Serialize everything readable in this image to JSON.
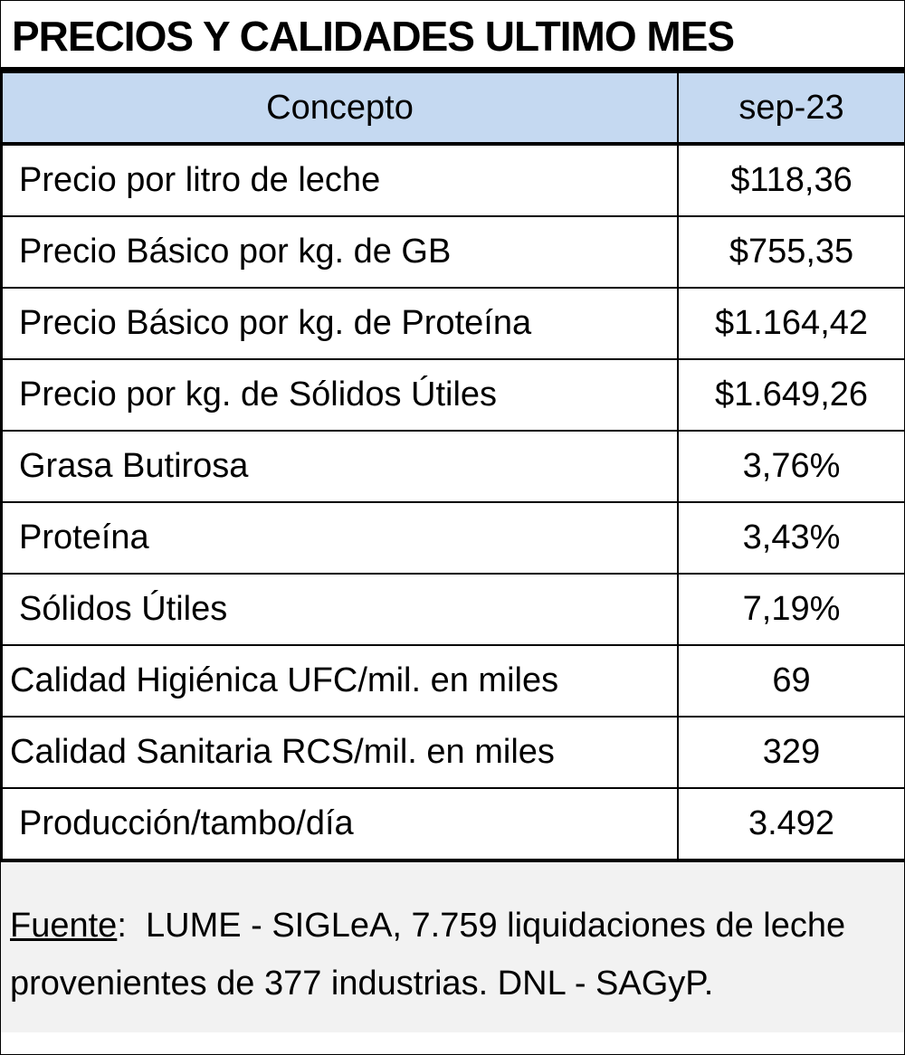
{
  "title": "PRECIOS Y CALIDADES ULTIMO MES",
  "table": {
    "headers": {
      "concepto": "Concepto",
      "period": "sep-23"
    },
    "rows": [
      {
        "label": "Precio por litro de leche",
        "value": "$118,36"
      },
      {
        "label": "Precio Básico por kg. de GB",
        "value": "$755,35"
      },
      {
        "label": "Precio Básico por kg. de Proteína",
        "value": "$1.164,42"
      },
      {
        "label": "Precio por kg. de Sólidos Útiles",
        "value": "$1.649,26"
      },
      {
        "label": "Grasa Butirosa",
        "value": "3,76%"
      },
      {
        "label": "Proteína",
        "value": "3,43%"
      },
      {
        "label": "Sólidos Útiles",
        "value": "7,19%"
      },
      {
        "label": "Calidad Higiénica UFC/mil. en miles",
        "value": "69"
      },
      {
        "label": "Calidad Sanitaria RCS/mil. en miles",
        "value": "329"
      },
      {
        "label": "Producción/tambo/día",
        "value": "3.492"
      }
    ]
  },
  "footer": {
    "source_label": "Fuente",
    "source_sep": ":",
    "text": "  LUME - SIGLeA, 7.759 liquidaciones de leche provenientes de 377 industrias. DNL - SAGyP."
  }
}
